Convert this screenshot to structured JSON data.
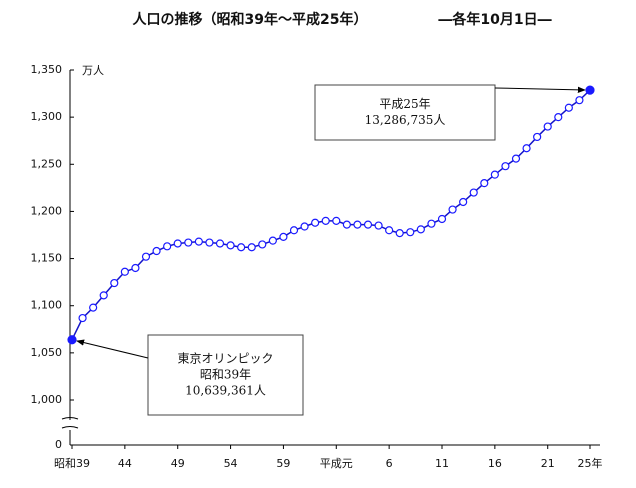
{
  "chart_data": {
    "type": "line",
    "title": "人口の推移（昭和39年〜平成25年）",
    "subtitle": "―各年10月1日―",
    "y_unit": "万人",
    "categories": [
      "昭和39",
      null,
      null,
      null,
      null,
      "44",
      null,
      null,
      null,
      null,
      "49",
      null,
      null,
      null,
      null,
      "54",
      null,
      null,
      null,
      null,
      "59",
      null,
      null,
      null,
      null,
      "平成元",
      null,
      null,
      null,
      null,
      "6",
      null,
      null,
      null,
      null,
      "11",
      null,
      null,
      null,
      null,
      "16",
      null,
      null,
      null,
      null,
      "21",
      null,
      null,
      null,
      "25年"
    ],
    "series": [
      {
        "name": "人口",
        "color": "#1414c8",
        "marker_color": "#1a1aff",
        "values": [
          1063.9361,
          1086.9,
          1098,
          1111,
          1124,
          1136,
          1140,
          1152,
          1158,
          1163,
          1166,
          1167,
          1168,
          1167,
          1166,
          1164,
          1162,
          1162,
          1165,
          1169,
          1173,
          1180,
          1184,
          1188,
          1190,
          1190,
          1186,
          1186,
          1186,
          1185,
          1180,
          1177,
          1178,
          1181,
          1187,
          1192,
          1202,
          1210,
          1220,
          1230,
          1239,
          1248,
          1256,
          1267,
          1279,
          1290,
          1300,
          1310,
          1318,
          1328.6735
        ]
      }
    ],
    "ylim": [
      0,
      1350
    ],
    "y_break": [
      0,
      1000
    ],
    "yticks": [
      0,
      {
        "value": 1000,
        "label": "1,000"
      },
      {
        "value": 1050,
        "label": "1,050"
      },
      {
        "value": 1100,
        "label": "1,100"
      },
      {
        "value": 1150,
        "label": "1,150"
      },
      {
        "value": 1200,
        "label": "1,200"
      },
      {
        "value": 1250,
        "label": "1,250"
      },
      {
        "value": 1300,
        "label": "1,300"
      },
      {
        "value": 1350,
        "label": "1,350"
      }
    ],
    "annotations": [
      {
        "lines": [
          "平成25年",
          "13,286,735人"
        ],
        "point": 49
      },
      {
        "lines": [
          "東京オリンピック",
          "昭和39年",
          "10,639,361人"
        ],
        "point": 0
      }
    ]
  }
}
